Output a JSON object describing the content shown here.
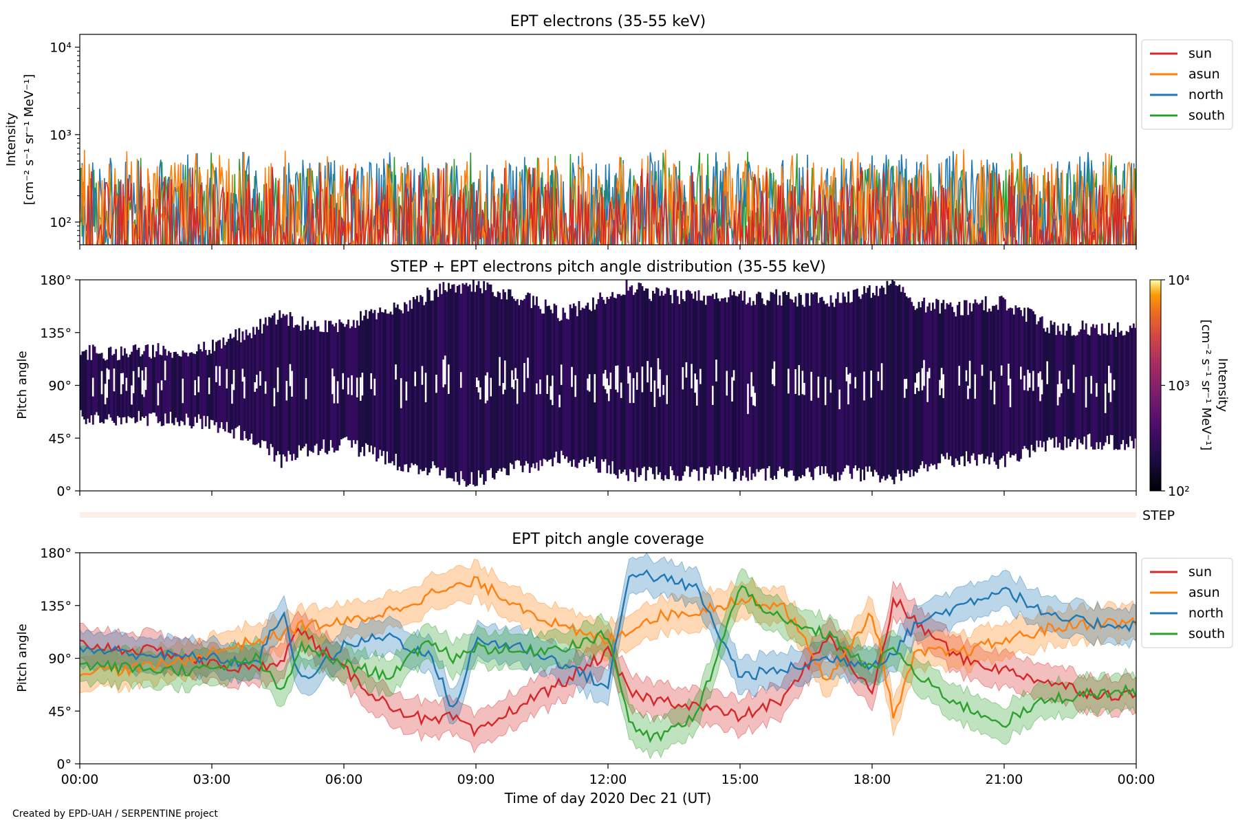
{
  "credit": "Created by EPD-UAH / SERPENTINE project",
  "xlabel": "Time of day 2020 Dec 21 (UT)",
  "x_ticks": [
    "00:00",
    "03:00",
    "06:00",
    "09:00",
    "12:00",
    "15:00",
    "18:00",
    "21:00",
    "00:00"
  ],
  "colors": {
    "sun": "#d62728",
    "asun": "#ff7f0e",
    "north": "#1f77b4",
    "south": "#2ca02c"
  },
  "chart_data": [
    {
      "type": "line",
      "title": "EPT electrons (35-55 keV)",
      "ylabel": [
        "Intensity",
        "[cm⁻² s⁻¹ sr⁻¹ MeV⁻¹]"
      ],
      "yscale": "log",
      "ylim": [
        55,
        14000
      ],
      "y_ticks": [
        {
          "label": "10²",
          "value": 100
        },
        {
          "label": "10³",
          "value": 1000
        },
        {
          "label": "10⁴",
          "value": 10000
        }
      ],
      "legend": [
        "sun",
        "asun",
        "north",
        "south"
      ],
      "legend_position": "right",
      "x_range_hours": [
        0,
        24
      ],
      "series_levels": [
        {
          "name": "sun",
          "typical": 95,
          "peak": 430
        },
        {
          "name": "asun",
          "typical": 160,
          "peak": 680
        },
        {
          "name": "north",
          "typical": 170,
          "peak": 650
        },
        {
          "name": "south",
          "typical": 140,
          "peak": 640
        }
      ]
    },
    {
      "type": "heatmap",
      "title": "STEP + EPT electrons pitch angle distribution (35-55 keV)",
      "ylabel": "Pitch angle",
      "ylim": [
        0,
        180
      ],
      "y_ticks": [
        "0°",
        "45°",
        "90°",
        "135°",
        "180°"
      ],
      "colorbar": {
        "label": [
          "Intensity",
          "[cm⁻² s⁻¹ sr⁻¹ MeV⁻¹]"
        ],
        "scale": "log",
        "range": [
          100,
          10000
        ],
        "ticks": [
          "10²",
          "10³",
          "10⁴"
        ],
        "colormap": "inferno"
      },
      "step_label": "STEP",
      "band_edges_time_hours": [
        0,
        1,
        2,
        3,
        4,
        4.6,
        5,
        6,
        7,
        7.5,
        8,
        8.5,
        9,
        10,
        11,
        12,
        12.5,
        13,
        14,
        15,
        16,
        17,
        18,
        18.5,
        19,
        20,
        21,
        22,
        23,
        24
      ],
      "band_low_deg": [
        62,
        62,
        62,
        58,
        45,
        25,
        35,
        40,
        28,
        20,
        20,
        10,
        10,
        20,
        28,
        20,
        12,
        15,
        15,
        15,
        15,
        15,
        15,
        12,
        20,
        28,
        25,
        40,
        42,
        40
      ],
      "band_high_deg": [
        118,
        118,
        120,
        123,
        138,
        150,
        142,
        142,
        155,
        160,
        168,
        175,
        175,
        165,
        150,
        165,
        175,
        168,
        165,
        165,
        165,
        162,
        170,
        175,
        160,
        155,
        162,
        140,
        138,
        138
      ]
    },
    {
      "type": "line",
      "title": "EPT pitch angle coverage",
      "ylabel": "Pitch angle",
      "ylim": [
        0,
        180
      ],
      "y_ticks": [
        "0°",
        "45°",
        "90°",
        "135°",
        "180°"
      ],
      "legend": [
        "sun",
        "asun",
        "north",
        "south"
      ],
      "legend_position": "right",
      "x": [
        0,
        1,
        2,
        3,
        4,
        4.6,
        5,
        6,
        7,
        8,
        8.5,
        9,
        10,
        11,
        12,
        12.5,
        13,
        14,
        15,
        16,
        17,
        18,
        18.5,
        19,
        20,
        21,
        22,
        23,
        24
      ],
      "series": [
        {
          "name": "sun",
          "values": [
            102,
            98,
            95,
            85,
            80,
            90,
            115,
            80,
            50,
            35,
            40,
            25,
            50,
            70,
            95,
            60,
            55,
            50,
            40,
            55,
            110,
            60,
            140,
            120,
            90,
            80,
            70,
            60,
            58
          ]
        },
        {
          "name": "asun",
          "values": [
            80,
            80,
            85,
            95,
            105,
            110,
            118,
            120,
            130,
            145,
            150,
            155,
            135,
            115,
            105,
            115,
            125,
            130,
            140,
            135,
            70,
            130,
            40,
            95,
            95,
            105,
            115,
            120,
            120
          ]
        },
        {
          "name": "north",
          "values": [
            98,
            95,
            92,
            90,
            85,
            130,
            70,
            100,
            110,
            90,
            45,
            105,
            100,
            85,
            65,
            165,
            160,
            150,
            75,
            80,
            90,
            85,
            95,
            120,
            135,
            150,
            125,
            120,
            118
          ]
        },
        {
          "name": "south",
          "values": [
            85,
            82,
            80,
            80,
            90,
            60,
            100,
            85,
            75,
            105,
            90,
            100,
            95,
            100,
            110,
            35,
            20,
            40,
            150,
            120,
            110,
            80,
            100,
            75,
            50,
            35,
            55,
            60,
            62
          ]
        }
      ],
      "band_halfwidth_deg": 15
    }
  ]
}
